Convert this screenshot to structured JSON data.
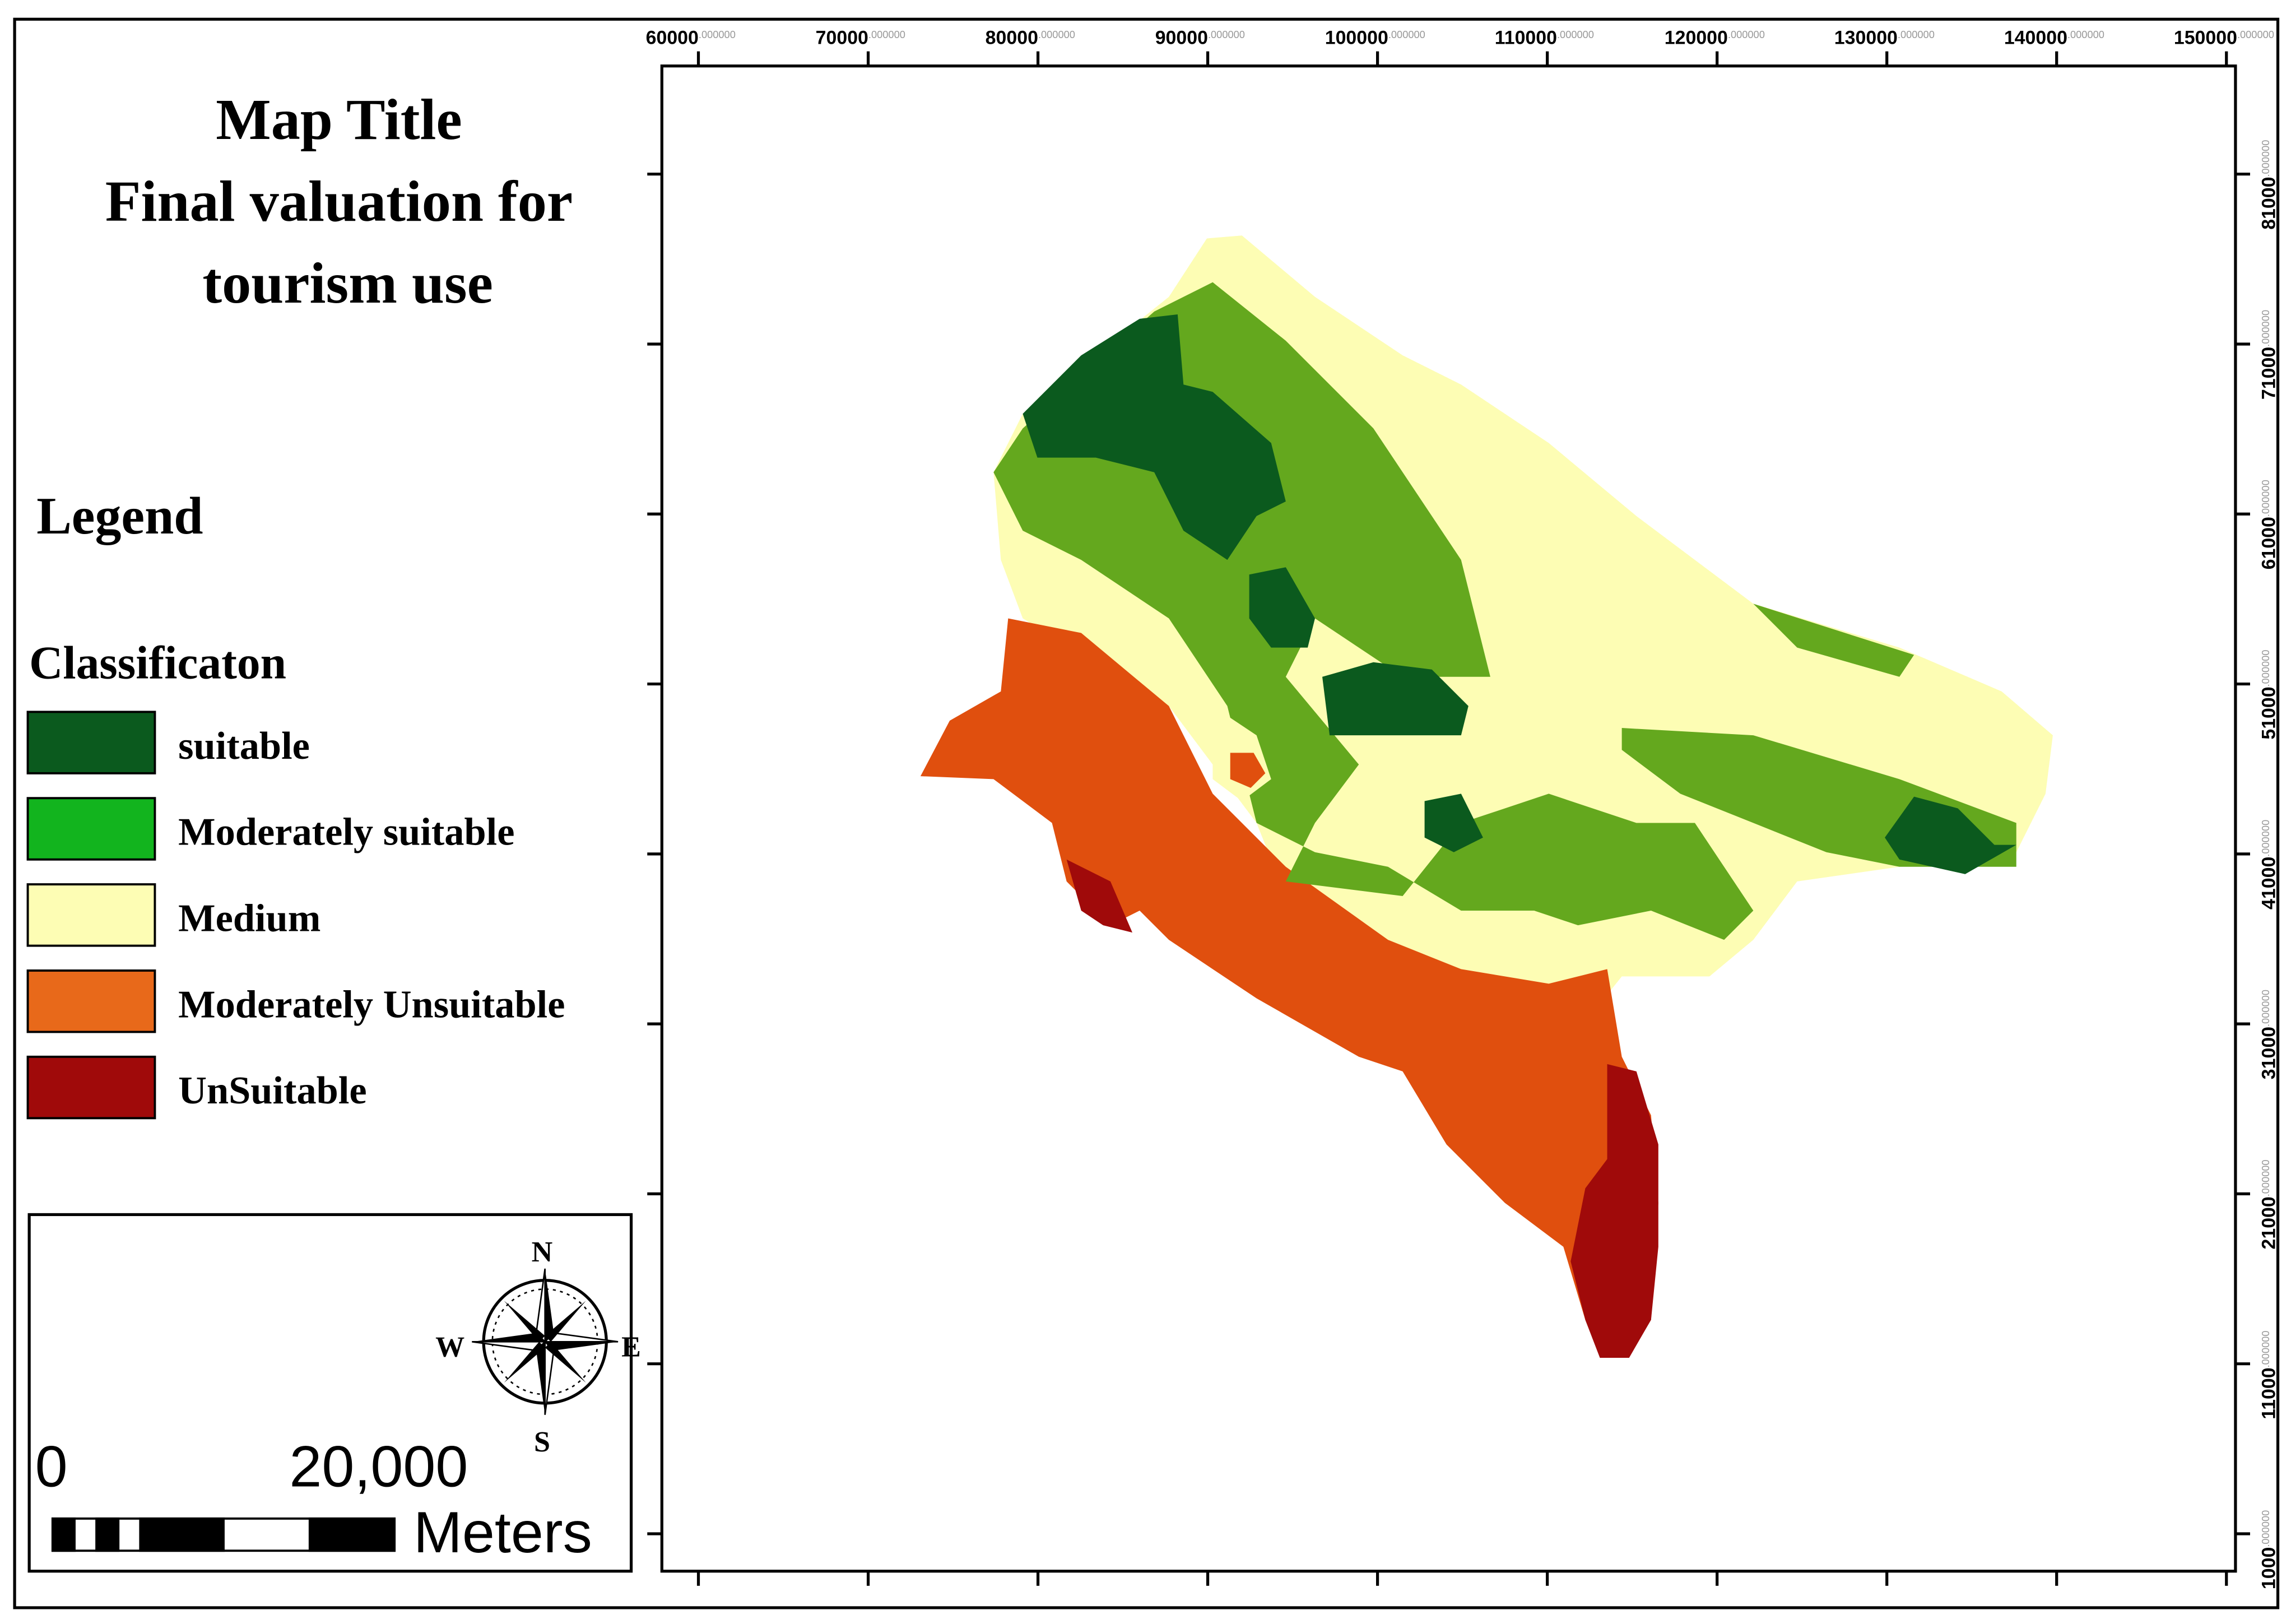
{
  "title": [
    "Map Title",
    "Final valuation for",
    "tourism use"
  ],
  "legend": {
    "heading": "Legend",
    "subheading": "Classificaton",
    "items": [
      {
        "label": "suitable",
        "color": "#0b5a1e"
      },
      {
        "label": "Moderately suitable",
        "color": "#12b41e"
      },
      {
        "label": "Medium",
        "color": "#fdfdb4"
      },
      {
        "label": "Moderately Unsuitable",
        "color": "#e8691a"
      },
      {
        "label": "UnSuitable",
        "color": "#a00a0a"
      }
    ]
  },
  "scale_bar": {
    "start": "0",
    "end": "20,000",
    "unit": "Meters"
  },
  "north_arrow": {
    "n": "N",
    "s": "S",
    "e": "E",
    "w": "W"
  },
  "x_axis_labels": [
    {
      "main": "60000",
      "decimals": ".000000"
    },
    {
      "main": "70000",
      "decimals": ".000000"
    },
    {
      "main": "80000",
      "decimals": ".000000"
    },
    {
      "main": "90000",
      "decimals": ".000000"
    },
    {
      "main": "100000",
      "decimals": ".000000"
    },
    {
      "main": "110000",
      "decimals": ".000000"
    },
    {
      "main": "120000",
      "decimals": ".000000"
    },
    {
      "main": "130000",
      "decimals": ".000000"
    },
    {
      "main": "140000",
      "decimals": ".000000"
    },
    {
      "main": "150000",
      "decimals": ".000000"
    }
  ],
  "y_axis_labels": [
    {
      "main": "81000",
      "decimals": ".000000"
    },
    {
      "main": "71000",
      "decimals": ".000000"
    },
    {
      "main": "61000",
      "decimals": ".000000"
    },
    {
      "main": "51000",
      "decimals": ".000000"
    },
    {
      "main": "41000",
      "decimals": ".000000"
    },
    {
      "main": "31000",
      "decimals": ".000000"
    },
    {
      "main": "21000",
      "decimals": ".000000"
    },
    {
      "main": "11000",
      "decimals": ".000000"
    },
    {
      "main": "1000",
      "decimals": ".000000"
    }
  ]
}
